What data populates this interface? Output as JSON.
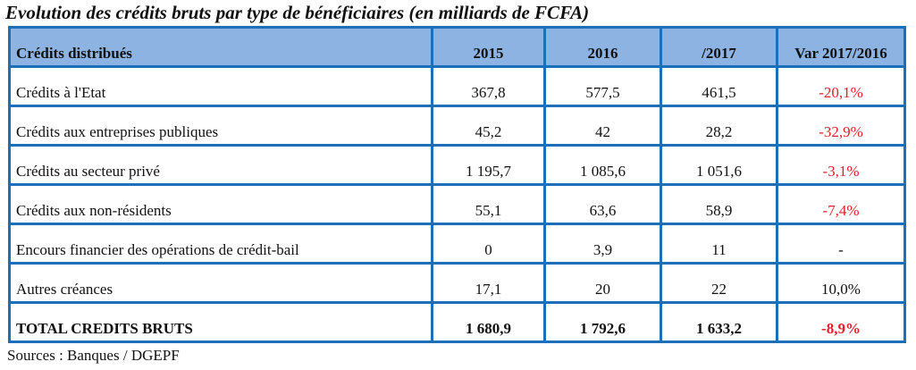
{
  "title": "Evolution des crédits bruts par type de bénéficiaires (en milliards de FCFA)",
  "headers": [
    "Crédits distribués",
    "2015",
    "2016",
    "/2017",
    "Var 2017/2016"
  ],
  "rows": [
    {
      "label": "Crédits à l'Etat",
      "v2015": "367,8",
      "v2016": "577,5",
      "v2017": "461,5",
      "var": "-20,1%"
    },
    {
      "label": "Crédits aux entreprises publiques",
      "v2015": "45,2",
      "v2016": "42",
      "v2017": "28,2",
      "var": "-32,9%"
    },
    {
      "label": "Crédits au secteur privé",
      "v2015": "1 195,7",
      "v2016": "1 085,6",
      "v2017": "1 051,6",
      "var": "-3,1%"
    },
    {
      "label": "Crédits aux non-résidents",
      "v2015": "55,1",
      "v2016": "63,6",
      "v2017": "58,9",
      "var": "-7,4%"
    },
    {
      "label": "Encours financier des opérations de crédit-bail",
      "v2015": "0",
      "v2016": "3,9",
      "v2017": "11",
      "var": "-"
    },
    {
      "label": "Autres créances",
      "v2015": "17,1",
      "v2016": "20",
      "v2017": "22",
      "var": "10,0%"
    }
  ],
  "total": {
    "label": "TOTAL CREDITS BRUTS",
    "v2015": "1 680,9",
    "v2016": "1 792,6",
    "v2017": "1 633,2",
    "var": "-8,9%"
  },
  "source": "Sources : Banques / DGEPF",
  "colors": {
    "border": "#1d6fb8",
    "header_bg": "#8db3e2",
    "negative": "#e0202a"
  }
}
